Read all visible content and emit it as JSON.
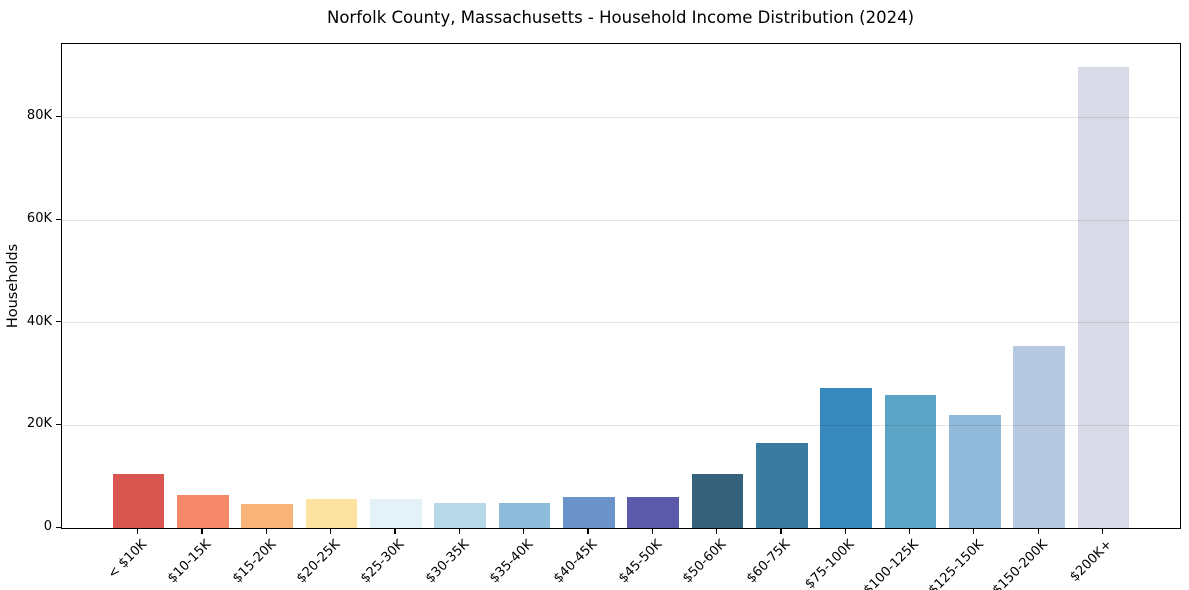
{
  "chart_data": {
    "type": "bar",
    "title": "Norfolk County, Massachusetts - Household Income Distribution (2024)",
    "xlabel": "",
    "ylabel": "Households",
    "categories": [
      "< $10K",
      "$10-15K",
      "$15-20K",
      "$20-25K",
      "$25-30K",
      "$30-35K",
      "$35-40K",
      "$40-45K",
      "$45-50K",
      "$50-60K",
      "$60-75K",
      "$75-100K",
      "$100-125K",
      "$125-150K",
      "$150-200K",
      "$200K+"
    ],
    "values": [
      10500,
      6400,
      4600,
      5600,
      5700,
      4800,
      4900,
      6000,
      6000,
      10500,
      16600,
      27200,
      25900,
      22000,
      35400,
      89800
    ],
    "bar_colors": [
      "#d95550",
      "#f48869",
      "#f8b376",
      "#fce3a1",
      "#e4f1f6",
      "#b7d9ea",
      "#8dbcda",
      "#6c93c9",
      "#5c5aab",
      "#35617a",
      "#3a7ba0",
      "#3889bd",
      "#5ba4c6",
      "#91b9d9",
      "#b7c9e0",
      "#d8dae7"
    ],
    "ylim": [
      0,
      94290
    ],
    "yticks": {
      "values": [
        0,
        20000,
        40000,
        60000,
        80000
      ],
      "labels": [
        "0",
        "20K",
        "40K",
        "60K",
        "80K"
      ]
    },
    "legend": "none",
    "grid": "horizontal",
    "grid_color": "rgba(0,0,0,0.10)",
    "spine_color": "#000000",
    "background_color": "#ffffff"
  }
}
